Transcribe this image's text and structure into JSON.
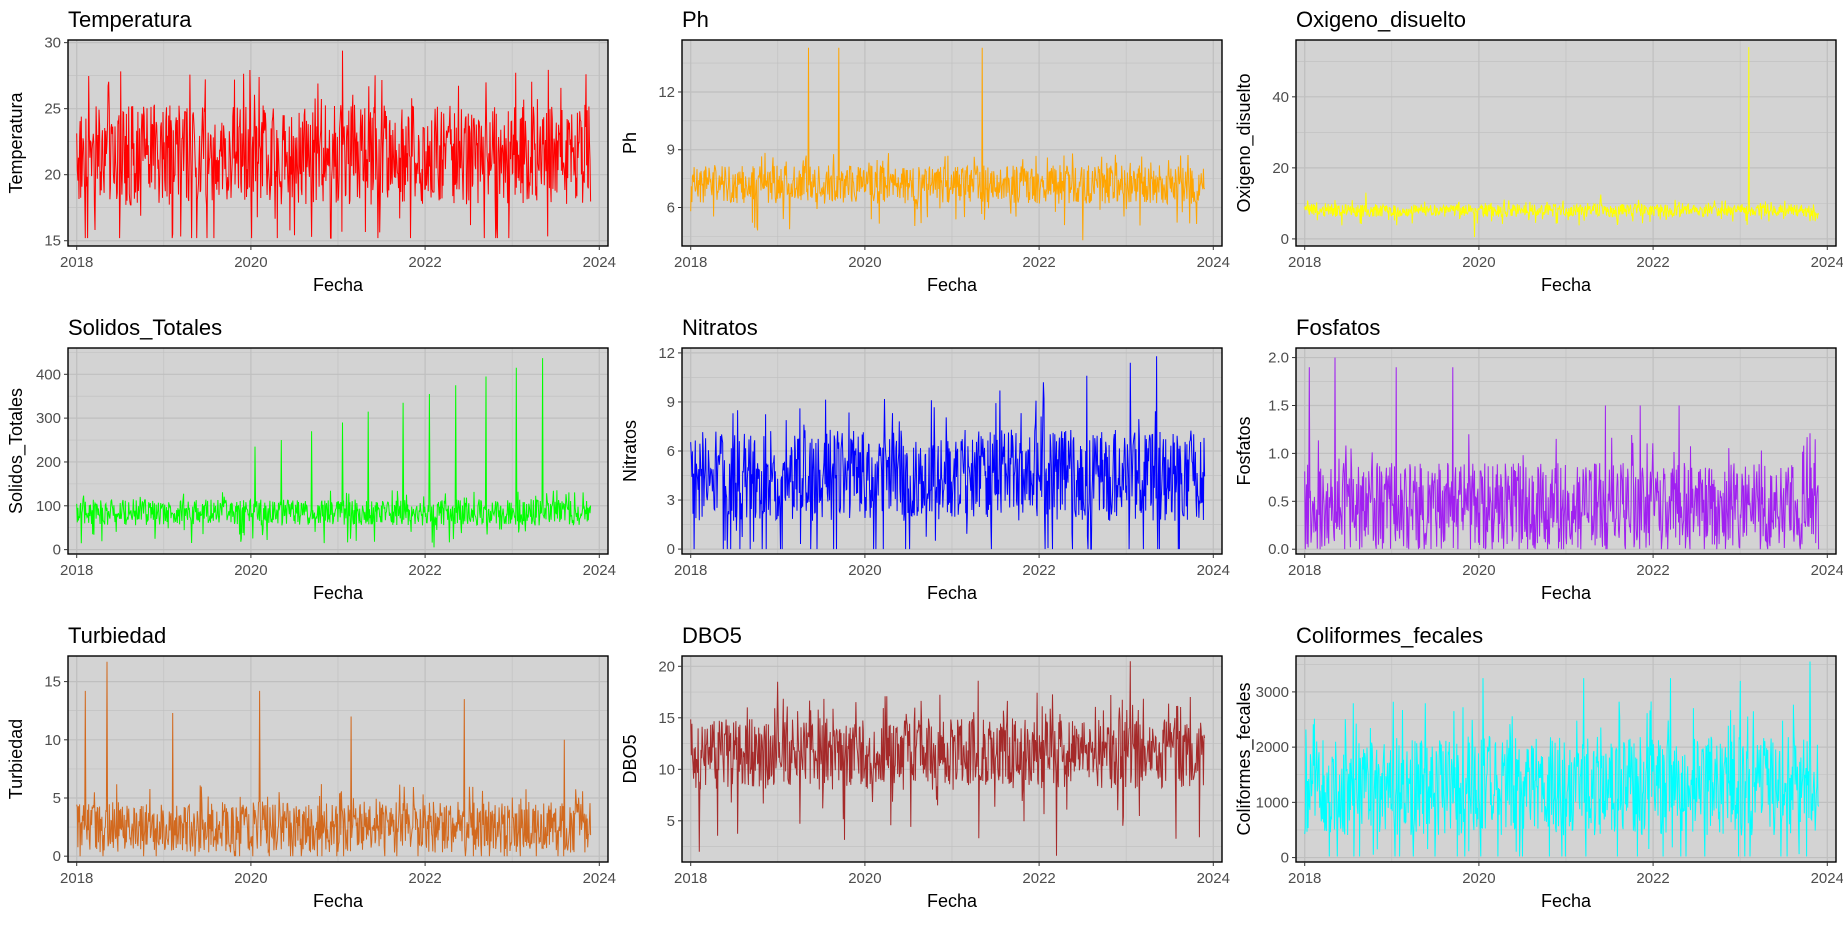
{
  "chart_data": [
    {
      "type": "line",
      "title": "Temperatura",
      "xlabel": "Fecha",
      "ylabel": "Temperatura",
      "color": "#FF0000",
      "x_ticks": [
        "2018",
        "2020",
        "2022",
        "2024"
      ],
      "xlim": [
        2017.9,
        2024.1
      ],
      "y_ticks": [
        15,
        20,
        25,
        30
      ],
      "ylim": [
        14.6,
        30.2
      ],
      "series": [
        {
          "x": [
            2018.0,
            2018.5,
            2019.0,
            2019.5,
            2020.0,
            2020.5,
            2021.0,
            2021.5,
            2022.0,
            2022.5,
            2023.0,
            2023.5,
            2023.9
          ],
          "base": 21.5,
          "spread": 3.8,
          "min": 15.2,
          "max": 29.4,
          "spikes": [
            [
              2021.05,
              29.4
            ],
            [
              2023.85,
              27.6
            ],
            [
              2018.1,
              15.2
            ],
            [
              2019.1,
              15.5
            ]
          ]
        }
      ]
    },
    {
      "type": "line",
      "title": "Ph",
      "xlabel": "Fecha",
      "ylabel": "Ph",
      "color": "#FFA500",
      "x_ticks": [
        "2018",
        "2020",
        "2022",
        "2024"
      ],
      "xlim": [
        2017.9,
        2024.1
      ],
      "y_ticks": [
        6,
        9,
        12
      ],
      "ylim": [
        4.0,
        14.7
      ],
      "series": [
        {
          "x": [
            2018.0,
            2019.0,
            2020.0,
            2021.0,
            2022.0,
            2023.0,
            2023.9
          ],
          "base": 7.2,
          "spread": 1.0,
          "min": 4.3,
          "max": 14.3,
          "spikes": [
            [
              2019.35,
              14.3
            ],
            [
              2019.7,
              14.3
            ],
            [
              2021.35,
              14.3
            ],
            [
              2022.5,
              4.3
            ]
          ]
        }
      ]
    },
    {
      "type": "line",
      "title": "Oxigeno_disuelto",
      "xlabel": "Fecha",
      "ylabel": "Oxigeno_disuelto",
      "color": "#FFFF00",
      "x_ticks": [
        "2018",
        "2020",
        "2022",
        "2024"
      ],
      "xlim": [
        2017.9,
        2024.1
      ],
      "y_ticks": [
        0,
        20,
        40
      ],
      "ylim": [
        -2,
        56
      ],
      "series": [
        {
          "x": [
            2018.0,
            2019.0,
            2020.0,
            2021.0,
            2022.0,
            2023.0,
            2023.9
          ],
          "base": 8,
          "spread": 1.8,
          "min": 0,
          "max": 54,
          "spikes": [
            [
              2023.1,
              54
            ],
            [
              2019.95,
              0.5
            ],
            [
              2018.7,
              13
            ],
            [
              2021.4,
              12.5
            ]
          ]
        }
      ]
    },
    {
      "type": "line",
      "title": "Solidos_Totales",
      "xlabel": "Fecha",
      "ylabel": "Solidos_Totales",
      "color": "#00FF00",
      "x_ticks": [
        "2018",
        "2020",
        "2022",
        "2024"
      ],
      "xlim": [
        2017.9,
        2024.1
      ],
      "y_ticks": [
        0,
        100,
        200,
        300,
        400
      ],
      "ylim": [
        -10,
        460
      ],
      "series": [
        {
          "x": [
            2018.0,
            2019.0,
            2020.0,
            2021.0,
            2022.0,
            2023.0,
            2023.9
          ],
          "base": 85,
          "spread": 30,
          "min": 5,
          "max": 437,
          "spikes": [
            [
              2020.05,
              235
            ],
            [
              2020.35,
              250
            ],
            [
              2020.7,
              270
            ],
            [
              2021.05,
              290
            ],
            [
              2021.35,
              315
            ],
            [
              2021.75,
              335
            ],
            [
              2022.05,
              355
            ],
            [
              2022.35,
              375
            ],
            [
              2022.7,
              395
            ],
            [
              2023.05,
              415
            ],
            [
              2023.35,
              437
            ],
            [
              2022.1,
              5
            ]
          ]
        }
      ]
    },
    {
      "type": "line",
      "title": "Nitratos",
      "xlabel": "Fecha",
      "ylabel": "Nitratos",
      "color": "#0000FF",
      "x_ticks": [
        "2018",
        "2020",
        "2022",
        "2024"
      ],
      "xlim": [
        2017.9,
        2024.1
      ],
      "y_ticks": [
        0,
        3,
        6,
        9,
        12
      ],
      "ylim": [
        -0.3,
        12.3
      ],
      "series": [
        {
          "x": [
            2018.0,
            2019.0,
            2020.0,
            2021.0,
            2022.0,
            2023.0,
            2023.9
          ],
          "base": 4.5,
          "spread": 2.8,
          "min": 0,
          "max": 11.8,
          "spikes": [
            [
              2021.55,
              9.7
            ],
            [
              2022.05,
              10.2
            ],
            [
              2022.55,
              10.6
            ],
            [
              2023.05,
              11.4
            ],
            [
              2023.35,
              11.8
            ]
          ]
        }
      ]
    },
    {
      "type": "line",
      "title": "Fosfatos",
      "xlabel": "Fecha",
      "ylabel": "Fosfatos",
      "color": "#A020F0",
      "x_ticks": [
        "2018",
        "2020",
        "2022",
        "2024"
      ],
      "xlim": [
        2017.9,
        2024.1
      ],
      "y_ticks": [
        0.0,
        0.5,
        1.0,
        1.5,
        2.0
      ],
      "ylim": [
        -0.05,
        2.1
      ],
      "series": [
        {
          "x": [
            2018.0,
            2019.0,
            2020.0,
            2021.0,
            2022.0,
            2023.0,
            2023.9
          ],
          "base": 0.45,
          "spread": 0.45,
          "min": 0,
          "max": 2.0,
          "spikes": [
            [
              2018.05,
              1.9
            ],
            [
              2018.35,
              2.0
            ],
            [
              2019.05,
              1.9
            ],
            [
              2019.7,
              1.9
            ],
            [
              2021.45,
              1.5
            ],
            [
              2021.85,
              1.5
            ],
            [
              2022.3,
              1.5
            ]
          ]
        }
      ]
    },
    {
      "type": "line",
      "title": "Turbiedad",
      "xlabel": "Fecha",
      "ylabel": "Turbiedad",
      "color": "#D2691E",
      "x_ticks": [
        "2018",
        "2020",
        "2022",
        "2024"
      ],
      "xlim": [
        2017.9,
        2024.1
      ],
      "y_ticks": [
        0,
        5,
        10,
        15
      ],
      "ylim": [
        -0.5,
        17.2
      ],
      "series": [
        {
          "x": [
            2018.0,
            2019.0,
            2020.0,
            2021.0,
            2022.0,
            2023.0,
            2023.9
          ],
          "base": 2.5,
          "spread": 2.2,
          "min": 0,
          "max": 16.7,
          "spikes": [
            [
              2018.35,
              16.7
            ],
            [
              2018.1,
              14.2
            ],
            [
              2019.1,
              12.3
            ],
            [
              2020.1,
              14.2
            ],
            [
              2022.45,
              13.5
            ],
            [
              2021.15,
              12.0
            ],
            [
              2023.6,
              10.0
            ]
          ]
        }
      ]
    },
    {
      "type": "line",
      "title": "DBO5",
      "xlabel": "Fecha",
      "ylabel": "DBO5",
      "color": "#A52A2A",
      "x_ticks": [
        "2018",
        "2020",
        "2022",
        "2024"
      ],
      "xlim": [
        2017.9,
        2024.1
      ],
      "y_ticks": [
        5,
        10,
        15,
        20
      ],
      "ylim": [
        1,
        21
      ],
      "series": [
        {
          "x": [
            2018.0,
            2019.0,
            2020.0,
            2021.0,
            2022.0,
            2023.0,
            2023.9
          ],
          "base": 11.5,
          "spread": 3.5,
          "min": 1.5,
          "max": 20.5,
          "spikes": [
            [
              2023.05,
              20.5
            ],
            [
              2019.0,
              18.5
            ],
            [
              2021.3,
              18.6
            ],
            [
              2018.1,
              2.0
            ],
            [
              2022.2,
              1.6
            ]
          ]
        }
      ]
    },
    {
      "type": "line",
      "title": "Coliformes_fecales",
      "xlabel": "Fecha",
      "ylabel": "Coliformes_fecales",
      "color": "#00FFFF",
      "x_ticks": [
        "2018",
        "2020",
        "2022",
        "2024"
      ],
      "xlim": [
        2017.9,
        2024.1
      ],
      "y_ticks": [
        0,
        1000,
        2000,
        3000
      ],
      "ylim": [
        -80,
        3650
      ],
      "series": [
        {
          "x": [
            2018.0,
            2019.0,
            2020.0,
            2021.0,
            2022.0,
            2023.0,
            2023.9
          ],
          "base": 1300,
          "spread": 900,
          "min": 20,
          "max": 3550,
          "spikes": [
            [
              2023.8,
              3550
            ],
            [
              2020.05,
              3250
            ],
            [
              2021.2,
              3250
            ],
            [
              2022.2,
              3250
            ],
            [
              2023.0,
              3200
            ]
          ]
        }
      ]
    }
  ]
}
